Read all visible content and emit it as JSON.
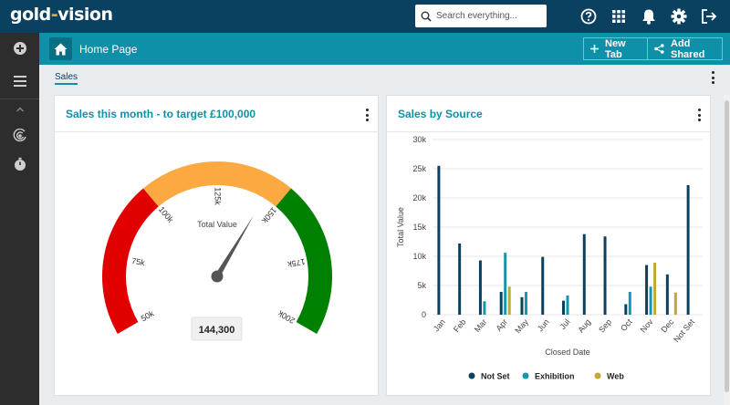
{
  "app": {
    "logo_left": "gold",
    "logo_dash": "-",
    "logo_right": "vision"
  },
  "search": {
    "placeholder": "Search everything..."
  },
  "topbar_icons": [
    "help-icon",
    "apps-grid-icon",
    "bell-icon",
    "gear-icon",
    "logout-icon"
  ],
  "sidebar_icons": [
    "add-icon",
    "menu-icon",
    "chevron-up-icon",
    "history-icon",
    "timer-icon"
  ],
  "header": {
    "title": "Home Page",
    "new_tab": "New Tab",
    "add_shared": "Add Shared"
  },
  "tabs": [
    {
      "label": "Sales",
      "active": true
    }
  ],
  "colors": {
    "topbar": "#0a4060",
    "header": "#0e90a8",
    "accent": "#0e90a8"
  },
  "gauge_panel": {
    "title": "Sales this month - to target £100,000",
    "label": "Total Value",
    "value_display": "144,300"
  },
  "chart_data": [
    {
      "type": "gauge",
      "title": "Sales this month - to target £100,000",
      "min": 50000,
      "max": 200000,
      "value": 144300,
      "ticks": [
        {
          "v": 50000,
          "label": "50k"
        },
        {
          "v": 75000,
          "label": "75k"
        },
        {
          "v": 100000,
          "label": "100k"
        },
        {
          "v": 125000,
          "label": "125k"
        },
        {
          "v": 150000,
          "label": "150k"
        },
        {
          "v": 175000,
          "label": "175k"
        },
        {
          "v": 200000,
          "label": "200k"
        }
      ],
      "bands": [
        {
          "from": 50000,
          "to": 100000,
          "color": "#e00000"
        },
        {
          "from": 100000,
          "to": 150000,
          "color": "#fba940"
        },
        {
          "from": 150000,
          "to": 200000,
          "color": "#008000"
        }
      ],
      "label": "Total Value",
      "value_display": "144,300"
    },
    {
      "type": "bar",
      "title": "Sales by Source",
      "xlabel": "Closed Date",
      "ylabel": "Total Value",
      "ylim": [
        0,
        30000
      ],
      "yticks": [
        {
          "v": 0,
          "label": "0"
        },
        {
          "v": 5000,
          "label": "5k"
        },
        {
          "v": 10000,
          "label": "10k"
        },
        {
          "v": 15000,
          "label": "15k"
        },
        {
          "v": 20000,
          "label": "20k"
        },
        {
          "v": 25000,
          "label": "25k"
        },
        {
          "v": 30000,
          "label": "30k"
        }
      ],
      "grid": true,
      "legend": "bottom",
      "categories": [
        "Jan",
        "Feb",
        "Mar",
        "Apr",
        "May",
        "Jun",
        "Jul",
        "Aug",
        "Sep",
        "Oct",
        "Nov",
        "Dec",
        "Not Set"
      ],
      "series": [
        {
          "name": "Not Set",
          "color": "#0a4060",
          "values": [
            25500,
            12200,
            9300,
            3900,
            3000,
            9900,
            2400,
            13800,
            13400,
            1800,
            8500,
            6900,
            22200
          ]
        },
        {
          "name": "Exhibition",
          "color": "#1596ad",
          "values": [
            0,
            0,
            2300,
            10600,
            3900,
            0,
            3300,
            0,
            0,
            3900,
            4800,
            0,
            0
          ]
        },
        {
          "name": "Web",
          "color": "#c4a535",
          "values": [
            0,
            0,
            0,
            4800,
            0,
            0,
            0,
            0,
            0,
            0,
            8900,
            3800,
            0
          ]
        }
      ]
    }
  ]
}
